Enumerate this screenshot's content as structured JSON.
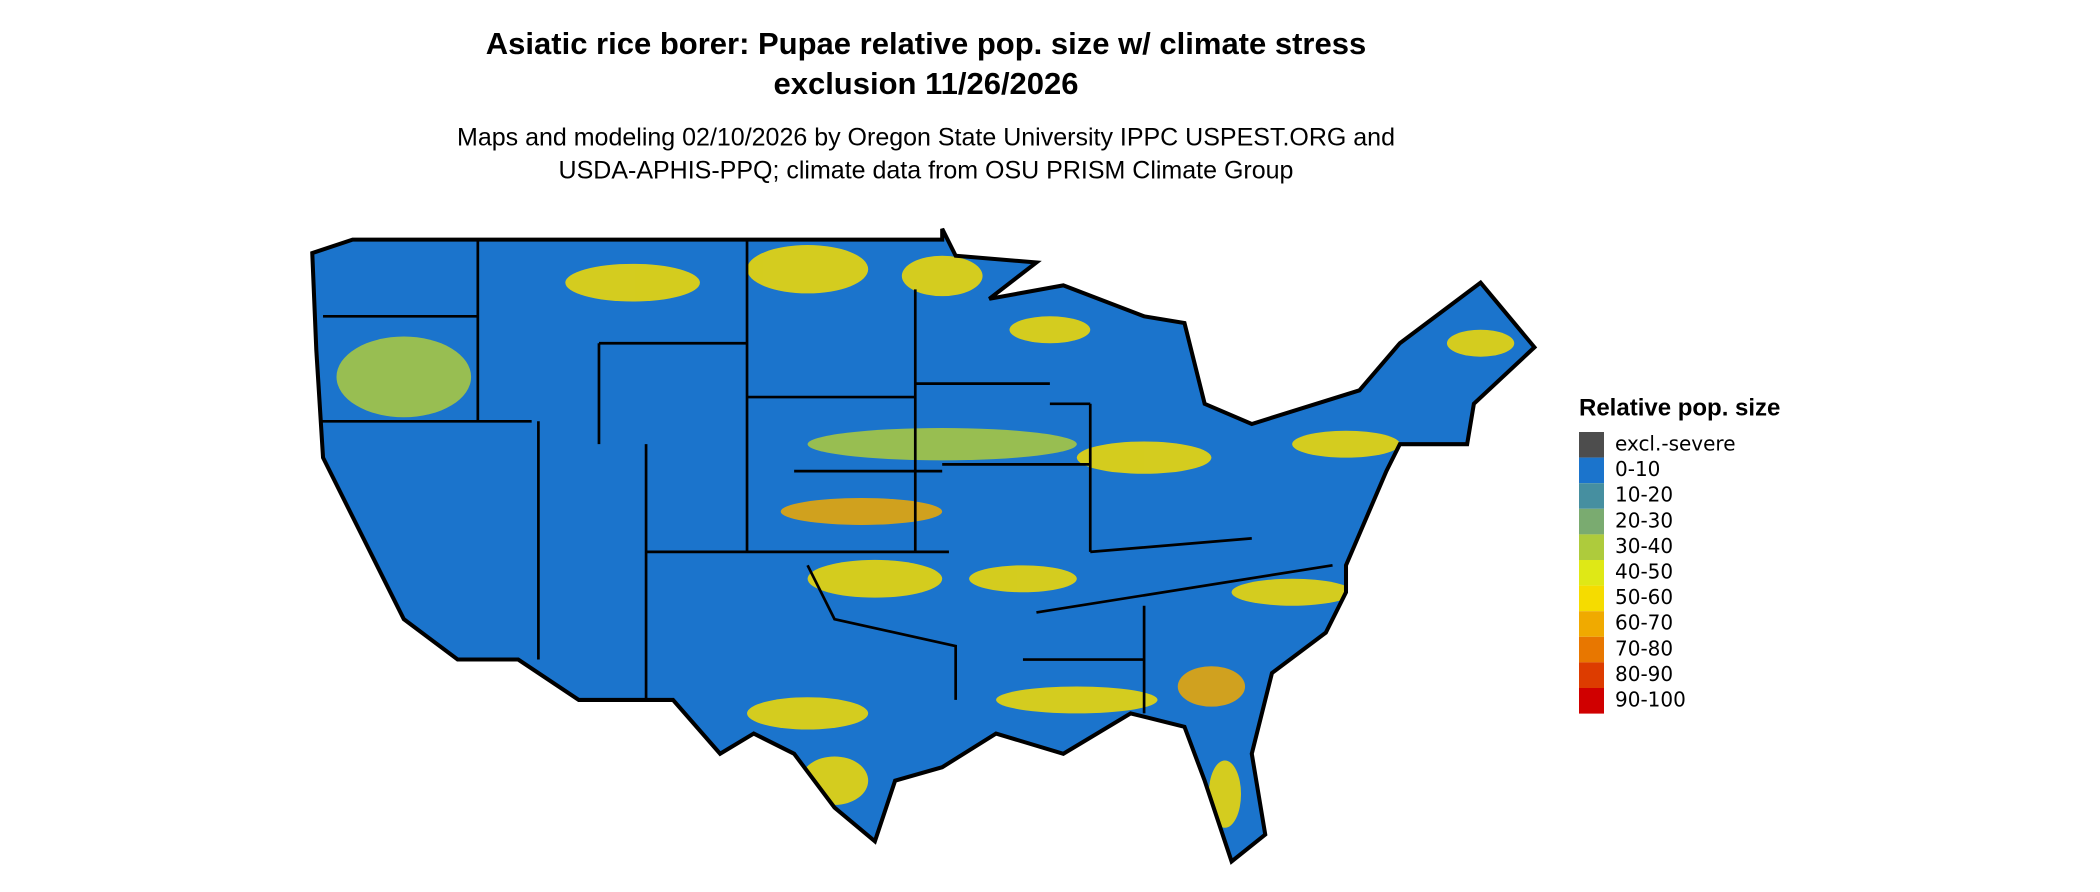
{
  "title": [
    "Asiatic rice borer: Pupae relative pop. size w/ climate stress",
    "exclusion 11/26/2026"
  ],
  "subtitle": [
    "Maps and modeling 02/10/2026 by Oregon State University IPPC USPEST.ORG and",
    "USDA-APHIS-PPQ; climate data from OSU PRISM Climate Group"
  ],
  "legend": {
    "title": "Relative pop. size",
    "items": [
      {
        "label": "excl.-severe",
        "color": "#4d4d4d"
      },
      {
        "label": "0-10",
        "color": "#1b74cc"
      },
      {
        "label": "10-20",
        "color": "#468fa0"
      },
      {
        "label": "20-30",
        "color": "#7aab70"
      },
      {
        "label": "30-40",
        "color": "#aecb3c"
      },
      {
        "label": "40-50",
        "color": "#dfe816"
      },
      {
        "label": "50-60",
        "color": "#f5dc00"
      },
      {
        "label": "60-70",
        "color": "#f0aa00"
      },
      {
        "label": "70-80",
        "color": "#e87700"
      },
      {
        "label": "80-90",
        "color": "#dd3c00"
      },
      {
        "label": "90-100",
        "color": "#d00000"
      }
    ]
  }
}
